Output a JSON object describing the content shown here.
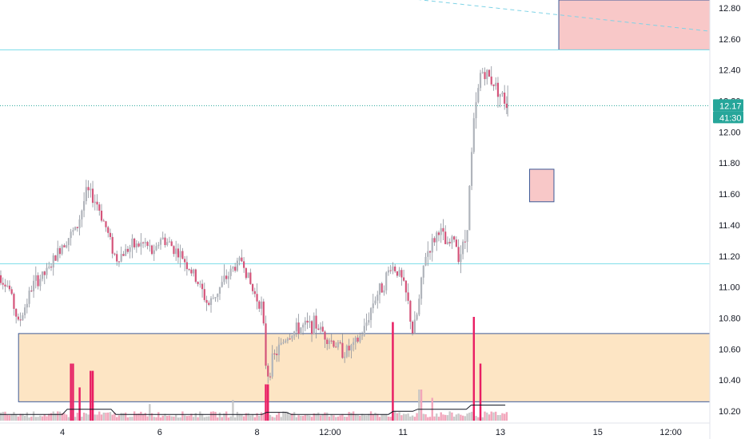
{
  "chart_data": {
    "type": "candlestick",
    "title": "",
    "xlabel": "",
    "ylabel": "",
    "price_range": [
      10.13,
      12.88
    ],
    "grid": false,
    "y_ticks": [
      "12.80",
      "12.60",
      "12.40",
      "12.20",
      "12.00",
      "11.80",
      "11.60",
      "11.40",
      "11.20",
      "11.00",
      "10.80",
      "10.60",
      "10.40",
      "10.20"
    ],
    "x_ticks": [
      {
        "label": "4",
        "day": 4
      },
      {
        "label": "6",
        "day": 6
      },
      {
        "label": "8",
        "day": 8
      },
      {
        "label": "12:00",
        "day": 9.5
      },
      {
        "label": "11",
        "day": 11
      },
      {
        "label": "13",
        "day": 13
      },
      {
        "label": "15",
        "day": 15
      },
      {
        "label": "12:00",
        "day": 16.5
      }
    ],
    "last_price": {
      "value": 12.17,
      "label": "12.17",
      "countdown": "41:30",
      "color": "#26a69a"
    },
    "horizontal_levels": [
      {
        "price": 12.53,
        "color": "#80deea"
      },
      {
        "price": 11.15,
        "color": "#80deea"
      }
    ],
    "zones": [
      {
        "name": "support-zone",
        "day_start": 3.1,
        "day_end": 17.7,
        "price_top": 10.7,
        "price_bottom": 10.26,
        "fill": "#fde5c4",
        "border": "#3d5a98"
      },
      {
        "name": "upper-supply-zone",
        "day_start": 14.2,
        "day_end": 17.7,
        "price_top": 12.88,
        "price_bottom": 12.53,
        "fill": "#f8c8c8",
        "border": "#3d5a98"
      },
      {
        "name": "small-supply-zone",
        "day_start": 13.6,
        "day_end": 14.1,
        "price_top": 11.76,
        "price_bottom": 11.55,
        "fill": "#f8c8c8",
        "border": "#3d5a98"
      }
    ],
    "trendline": {
      "day_start": 8.5,
      "price_start": 12.95,
      "day_end": 17.7,
      "price_end": 12.65,
      "color": "#7fd3e6",
      "dashed": true
    },
    "price_path": [
      [
        2.6,
        11.12
      ],
      [
        2.9,
        11.0
      ],
      [
        3.1,
        10.76
      ],
      [
        3.4,
        11.02
      ],
      [
        3.7,
        11.1
      ],
      [
        4.0,
        11.28
      ],
      [
        4.3,
        11.38
      ],
      [
        4.5,
        11.62
      ],
      [
        4.7,
        11.55
      ],
      [
        4.9,
        11.38
      ],
      [
        5.1,
        11.18
      ],
      [
        5.4,
        11.26
      ],
      [
        5.7,
        11.28
      ],
      [
        5.9,
        11.2
      ],
      [
        6.0,
        11.32
      ],
      [
        6.2,
        11.28
      ],
      [
        6.5,
        11.18
      ],
      [
        6.8,
        11.02
      ],
      [
        7.0,
        10.88
      ],
      [
        7.2,
        10.98
      ],
      [
        7.5,
        11.12
      ],
      [
        7.7,
        11.18
      ],
      [
        7.9,
        10.98
      ],
      [
        8.1,
        10.88
      ],
      [
        8.2,
        10.42
      ],
      [
        8.35,
        10.55
      ],
      [
        8.6,
        10.68
      ],
      [
        8.9,
        10.74
      ],
      [
        9.2,
        10.76
      ],
      [
        9.5,
        10.66
      ],
      [
        9.8,
        10.58
      ],
      [
        10.0,
        10.62
      ],
      [
        10.2,
        10.72
      ],
      [
        10.4,
        10.92
      ],
      [
        10.6,
        11.02
      ],
      [
        10.75,
        11.14
      ],
      [
        10.9,
        11.1
      ],
      [
        11.0,
        11.02
      ],
      [
        11.1,
        10.9
      ],
      [
        11.2,
        10.7
      ],
      [
        11.3,
        10.84
      ],
      [
        11.45,
        11.2
      ],
      [
        11.6,
        11.28
      ],
      [
        11.75,
        11.38
      ],
      [
        11.9,
        11.25
      ],
      [
        12.05,
        11.32
      ],
      [
        12.15,
        11.2
      ],
      [
        12.3,
        11.32
      ],
      [
        12.45,
        12.05
      ],
      [
        12.6,
        12.4
      ],
      [
        12.75,
        12.36
      ],
      [
        12.9,
        12.3
      ],
      [
        13.05,
        12.22
      ],
      [
        13.15,
        12.17
      ]
    ],
    "volume_series": {
      "name": "volume",
      "color_up": "#f1a2b8",
      "color_down": "#e91e63",
      "neutral": "#c4c4c4"
    },
    "volume_ma": {
      "color": "#131722"
    },
    "volume_spikes": [
      {
        "day": 4.2,
        "value": 0.55
      },
      {
        "day": 4.35,
        "value": 0.32
      },
      {
        "day": 4.6,
        "value": 0.48
      },
      {
        "day": 5.8,
        "value": 0.16
      },
      {
        "day": 7.5,
        "value": 0.2
      },
      {
        "day": 8.2,
        "value": 0.35
      },
      {
        "day": 10.8,
        "value": 0.95
      },
      {
        "day": 11.35,
        "value": 0.3
      },
      {
        "day": 11.6,
        "value": 0.22
      },
      {
        "day": 12.45,
        "value": 1.0
      },
      {
        "day": 12.6,
        "value": 0.55
      }
    ]
  }
}
